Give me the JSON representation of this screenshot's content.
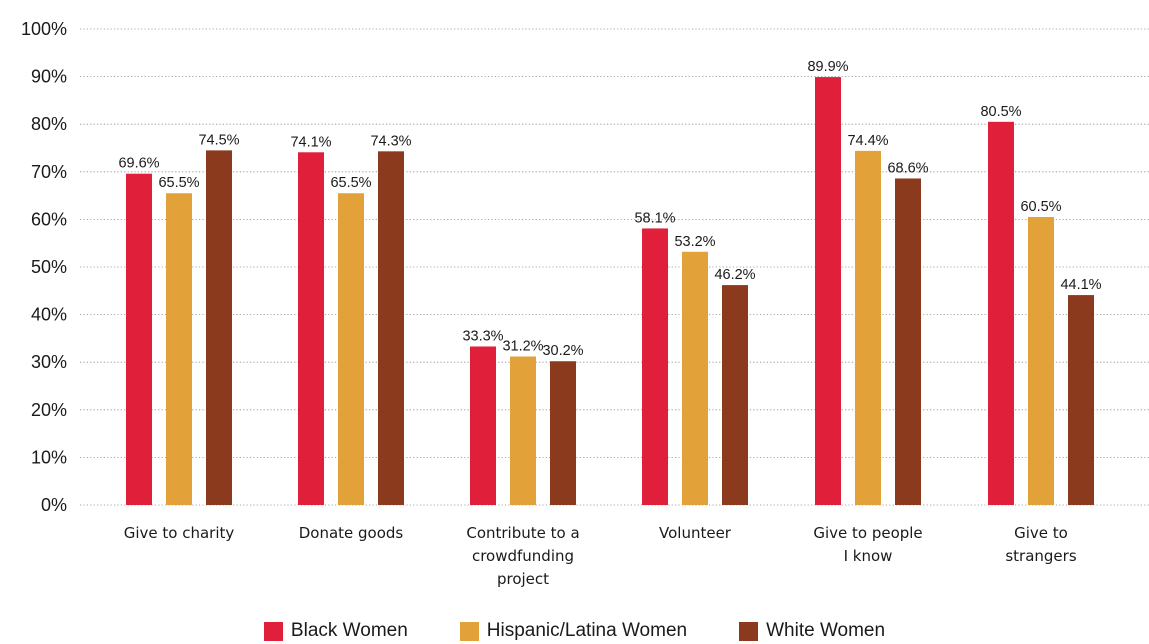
{
  "chart_data": {
    "type": "bar",
    "categories": [
      [
        "Give to charity"
      ],
      [
        "Donate goods"
      ],
      [
        "Contribute to a",
        "crowdfunding",
        "project"
      ],
      [
        "Volunteer"
      ],
      [
        "Give to people",
        "I know"
      ],
      [
        "Give to",
        "strangers"
      ]
    ],
    "series": [
      {
        "name": "Black Women",
        "color": "#e01f3a",
        "values": [
          69.6,
          74.1,
          33.3,
          58.1,
          89.9,
          80.5
        ],
        "labels": [
          "69.6%",
          "74.1%",
          "33.3%",
          "58.1%",
          "89.9%",
          "80.5%"
        ]
      },
      {
        "name": "Hispanic/Latina Women",
        "color": "#e3a13a",
        "values": [
          65.5,
          65.5,
          31.2,
          53.2,
          74.4,
          60.5
        ],
        "labels": [
          "65.5%",
          "65.5%",
          "31.2%",
          "53.2%",
          "74.4%",
          "60.5%"
        ]
      },
      {
        "name": "White Women",
        "color": "#8b3a1e",
        "values": [
          74.5,
          74.3,
          30.2,
          46.2,
          68.6,
          44.1
        ],
        "labels": [
          "74.5%",
          "74.3%",
          "30.2%",
          "46.2%",
          "68.6%",
          "44.1%"
        ]
      }
    ],
    "yticks": [
      "0%",
      "10%",
      "20%",
      "30%",
      "40%",
      "50%",
      "60%",
      "70%",
      "80%",
      "90%",
      "100%"
    ],
    "ylim": [
      0,
      100
    ],
    "grid": true,
    "legend_position": "bottom"
  }
}
